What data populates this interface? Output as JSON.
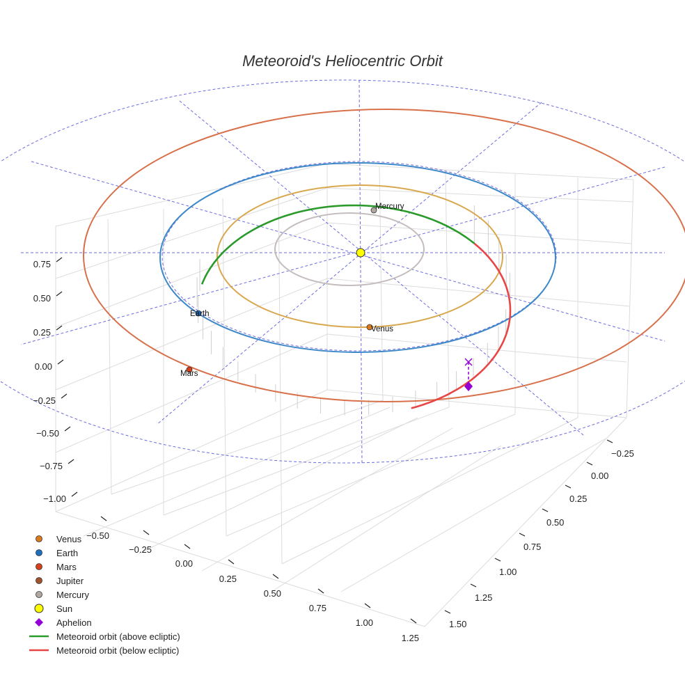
{
  "chart_data": {
    "type": "scatter",
    "title": "Meteoroid's Heliocentric Orbit",
    "projection": "3d",
    "z_ticks": [
      "0.75",
      "0.50",
      "0.25",
      "0.00",
      "−0.25",
      "−0.50",
      "−0.75",
      "−1.00"
    ],
    "x_ticks": [
      "−0.50",
      "−0.25",
      "0.00",
      "0.25",
      "0.50",
      "0.75",
      "1.00",
      "1.25"
    ],
    "y_ticks": [
      "−0.25",
      "0.00",
      "0.25",
      "0.50",
      "0.75",
      "1.00",
      "1.25",
      "1.50"
    ],
    "planets": [
      {
        "name": "Venus",
        "color": "#d97a1e",
        "label": "Venus"
      },
      {
        "name": "Earth",
        "color": "#1f6fbf",
        "label": "Earth"
      },
      {
        "name": "Mars",
        "color": "#d6401c",
        "label": "Mars"
      },
      {
        "name": "Jupiter",
        "color": "#a0522d",
        "label": ""
      },
      {
        "name": "Mercury",
        "color": "#b0a8a0",
        "label": "Mercury"
      }
    ],
    "planet_orbit_colors": {
      "Mercury": "#c5bdbd",
      "Venus": "#d9a84e",
      "Earth": "#3d88c9",
      "Mars": "#d8704a"
    },
    "sun": {
      "name": "Sun",
      "color": "#ffff00"
    },
    "aphelion": {
      "name": "Aphelion",
      "color": "#9400d3"
    },
    "meteoroid_orbit": [
      {
        "name": "Meteoroid orbit (above ecliptic)",
        "color": "#2a9a2a"
      },
      {
        "name": "Meteoroid orbit (below ecliptic)",
        "color": "#e84545"
      }
    ],
    "legend": [
      {
        "label": "Venus",
        "marker": "circle",
        "color": "#d97a1e"
      },
      {
        "label": "Earth",
        "marker": "circle",
        "color": "#1f6fbf"
      },
      {
        "label": "Mars",
        "marker": "circle",
        "color": "#d6401c"
      },
      {
        "label": "Jupiter",
        "marker": "circle",
        "color": "#a0522d"
      },
      {
        "label": "Mercury",
        "marker": "circle",
        "color": "#b0a8a0"
      },
      {
        "label": "Sun",
        "marker": "circle-large",
        "color": "#ffff00"
      },
      {
        "label": "Aphelion",
        "marker": "diamond",
        "color": "#9400d3"
      },
      {
        "label": "Meteoroid orbit (above ecliptic)",
        "marker": "line",
        "color": "#2a9a2a"
      },
      {
        "label": "Meteoroid orbit (below ecliptic)",
        "marker": "line",
        "color": "#e84545"
      }
    ],
    "legend_position": "bottom-left",
    "grid": true
  }
}
